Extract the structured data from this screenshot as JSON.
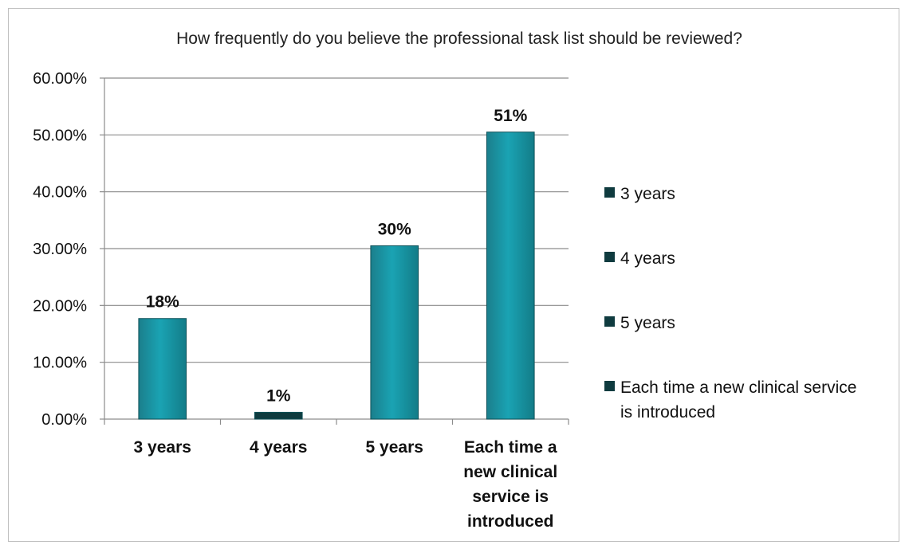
{
  "chart_data": {
    "type": "bar",
    "title": "How frequently do you believe the professional task list should be reviewed?",
    "categories": [
      "3 years",
      "4 years",
      "5 years",
      "Each time a new clinical service is introduced"
    ],
    "category_label_lines": [
      [
        "3 years"
      ],
      [
        "4 years"
      ],
      [
        "5 years"
      ],
      [
        "Each time a",
        "new clinical",
        "service is",
        "introduced"
      ]
    ],
    "values": [
      0.177,
      0.012,
      0.305,
      0.505
    ],
    "data_labels": [
      "18%",
      "1%",
      "30%",
      "51%"
    ],
    "bar_colors": [
      "#1590a0",
      "#0f3b3f",
      "#1590a0",
      "#1590a0"
    ],
    "ylim": [
      0,
      0.6
    ],
    "yticks": [
      0,
      0.1,
      0.2,
      0.3,
      0.4,
      0.5,
      0.6
    ],
    "ytick_labels": [
      "0.00%",
      "10.00%",
      "20.00%",
      "30.00%",
      "40.00%",
      "50.00%",
      "60.00%"
    ],
    "grid": true,
    "xlabel": "",
    "ylabel": "",
    "legend": {
      "position": "right",
      "swatch_color": "#0f3b3f",
      "entries": [
        [
          "3 years"
        ],
        [
          "4 years"
        ],
        [
          "5 years"
        ],
        [
          "Each time a new clinical service",
          "is introduced"
        ]
      ]
    }
  }
}
